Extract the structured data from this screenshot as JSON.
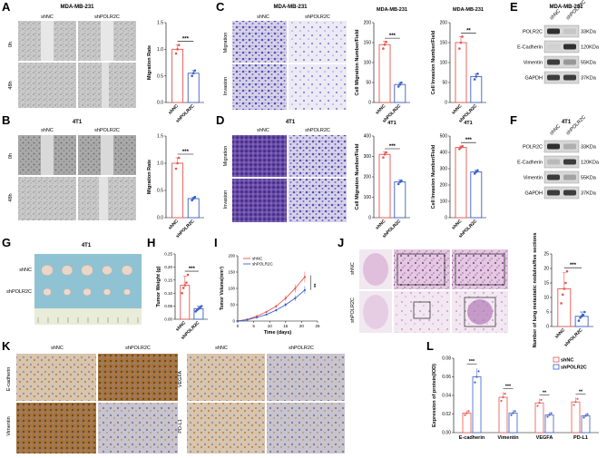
{
  "panels": {
    "A": {
      "letter": "A",
      "cell_line": "MDA-MB-231",
      "groups": [
        "shNC",
        "shPOLR2C"
      ],
      "rows": [
        "0h",
        "48h"
      ]
    },
    "B": {
      "letter": "B",
      "cell_line": "4T1",
      "groups": [
        "shNC",
        "shPOLR2C"
      ],
      "rows": [
        "0h",
        "48h"
      ]
    },
    "C": {
      "letter": "C",
      "cell_line": "MDA-MB-231",
      "groups": [
        "shNC",
        "shPOLR2C"
      ],
      "rows": [
        "Migration",
        "Invasion"
      ]
    },
    "D": {
      "letter": "D",
      "cell_line": "4T1",
      "groups": [
        "shNC",
        "shPOLR2C"
      ],
      "rows": [
        "Migration",
        "Invasion"
      ]
    },
    "E": {
      "letter": "E",
      "cell_line": "MDA-MB-231",
      "lanes": [
        "shNC",
        "shPOLR2C"
      ],
      "bands": [
        {
          "name": "POLR2C",
          "size": "33KDa"
        },
        {
          "name": "E-Cadherin",
          "size": "120KDa"
        },
        {
          "name": "Vimentin",
          "size": "55KDa"
        },
        {
          "name": "GAPDH",
          "size": "37KDa"
        }
      ]
    },
    "F": {
      "letter": "F",
      "cell_line": "4T1",
      "lanes": [
        "shNC",
        "shPOLR2C"
      ],
      "bands": [
        {
          "name": "POLR2C",
          "size": "33KDa"
        },
        {
          "name": "E-Cadherin",
          "size": "120KDa"
        },
        {
          "name": "Vimentin",
          "size": "55KDa"
        },
        {
          "name": "GAPDH",
          "size": "37KDa"
        }
      ]
    },
    "G": {
      "letter": "G",
      "cell_line": "4T1",
      "rows": [
        "shNC",
        "shPOLR2C"
      ]
    },
    "H": {
      "letter": "H"
    },
    "I": {
      "letter": "I"
    },
    "J": {
      "letter": "J",
      "rows": [
        "shNC",
        "shPOLR2C"
      ]
    },
    "K": {
      "letter": "K",
      "groups": [
        "shNC",
        "shPOLR2C"
      ],
      "markers_left": [
        "E-cadherin",
        "Vimentin"
      ],
      "markers_right": [
        "VEGFA",
        "PD-L1"
      ]
    },
    "L": {
      "letter": "L"
    }
  },
  "colors": {
    "shNC": "#e8554e",
    "shPOLR2C": "#3b5fc9",
    "crystal": "#7b6fc9",
    "sig": "#000000"
  },
  "chart_data": [
    {
      "id": "A-chart",
      "type": "bar",
      "ylabel": "Migration Rate",
      "categories": [
        "shNC",
        "shPOLR2C"
      ],
      "values": [
        1.0,
        0.55
      ],
      "points": [
        [
          0.92,
          1.0,
          1.08
        ],
        [
          0.5,
          0.55,
          0.6
        ]
      ],
      "ylim": [
        0,
        1.5
      ],
      "ticks": [
        "0.0",
        "0.5",
        "1.0",
        "1.5"
      ],
      "sig": "***"
    },
    {
      "id": "B-chart",
      "type": "bar",
      "ylabel": "Migration Rate",
      "categories": [
        "shNC",
        "shPOLR2C"
      ],
      "values": [
        1.0,
        0.35
      ],
      "points": [
        [
          0.9,
          1.0,
          1.1
        ],
        [
          0.32,
          0.35,
          0.38
        ]
      ],
      "ylim": [
        0,
        1.5
      ],
      "ticks": [
        "0.0",
        "0.5",
        "1.0",
        "1.5"
      ],
      "sig": "***"
    },
    {
      "id": "C-mig",
      "type": "bar",
      "title": "MDA-MB-231",
      "ylabel": "Cell Migration Number/Field",
      "categories": [
        "shNC",
        "shPOLR2C"
      ],
      "values": [
        145,
        45
      ],
      "points": [
        [
          135,
          145,
          152
        ],
        [
          40,
          45,
          50
        ]
      ],
      "ylim": [
        0,
        200
      ],
      "ticks": [
        "0",
        "50",
        "100",
        "150",
        "200"
      ],
      "sig": "***"
    },
    {
      "id": "C-inv",
      "type": "bar",
      "title": "MDA-MB-231",
      "ylabel": "Cell Invasion Number/Field",
      "categories": [
        "shNC",
        "shPOLR2C"
      ],
      "values": [
        150,
        65
      ],
      "points": [
        [
          135,
          150,
          165
        ],
        [
          58,
          65,
          72
        ]
      ],
      "ylim": [
        0,
        200
      ],
      "ticks": [
        "0",
        "50",
        "100",
        "150",
        "200"
      ],
      "sig": "**"
    },
    {
      "id": "D-mig",
      "type": "bar",
      "title": "4T1",
      "ylabel": "Cell Migration Number/Field",
      "categories": [
        "shNC",
        "shPOLR2C"
      ],
      "values": [
        310,
        175
      ],
      "points": [
        [
          295,
          310,
          320
        ],
        [
          165,
          175,
          182
        ]
      ],
      "ylim": [
        0,
        400
      ],
      "ticks": [
        "0",
        "100",
        "200",
        "300",
        "400"
      ],
      "sig": "***"
    },
    {
      "id": "D-inv",
      "type": "bar",
      "title": "4T1",
      "ylabel": "Cell Invasion Number/Field",
      "categories": [
        "shNC",
        "shPOLR2C"
      ],
      "values": [
        430,
        280
      ],
      "points": [
        [
          420,
          430,
          438
        ],
        [
          270,
          280,
          290
        ]
      ],
      "ylim": [
        0,
        500
      ],
      "ticks": [
        "0",
        "100",
        "200",
        "300",
        "400",
        "500"
      ],
      "sig": "***"
    },
    {
      "id": "H-chart",
      "type": "bar",
      "ylabel": "Tumor Weight (g)",
      "categories": [
        "shNC",
        "shPOLR2C"
      ],
      "values": [
        0.13,
        0.04
      ],
      "points": [
        [
          0.1,
          0.12,
          0.13,
          0.14,
          0.17
        ],
        [
          0.03,
          0.035,
          0.04,
          0.045,
          0.05
        ]
      ],
      "ylim": [
        0,
        0.25
      ],
      "ticks": [
        "0.00",
        "0.05",
        "0.10",
        "0.15",
        "0.20",
        "0.25"
      ],
      "sig": "***"
    },
    {
      "id": "I-chart",
      "type": "line",
      "xlabel": "Time (days)",
      "ylabel": "Tumor Volume(mm³)",
      "x": [
        0,
        3,
        6,
        9,
        12,
        15,
        18,
        21
      ],
      "xticks": [
        "0",
        "5",
        "10",
        "15",
        "20",
        "25"
      ],
      "yticks": [
        "0",
        "50",
        "100",
        "150",
        "200"
      ],
      "ylim": [
        0,
        200
      ],
      "xlim": [
        0,
        25
      ],
      "series": [
        {
          "name": "shNC",
          "values": [
            0,
            5,
            15,
            28,
            45,
            70,
            100,
            135
          ]
        },
        {
          "name": "shPOLR2C",
          "values": [
            0,
            4,
            11,
            20,
            33,
            50,
            70,
            95
          ]
        }
      ],
      "sig": "**"
    },
    {
      "id": "J-chart",
      "type": "bar",
      "ylabel": "Number of lung metastatic nodules/five sections",
      "categories": [
        "shNC",
        "shPOLR2C"
      ],
      "values": [
        13,
        3.5
      ],
      "points": [
        [
          8,
          11,
          13,
          15,
          19
        ],
        [
          2,
          3,
          3.5,
          4,
          5
        ]
      ],
      "ylim": [
        0,
        25
      ],
      "ticks": [
        "0",
        "5",
        "10",
        "15",
        "20",
        "25"
      ],
      "sig": "***"
    },
    {
      "id": "L-chart",
      "type": "bar",
      "ylabel": "Expression of protein(IOD)",
      "categories": [
        "E-cadherin",
        "Vimentin",
        "VEGFA",
        "PD-L1"
      ],
      "ylim": [
        0,
        0.08
      ],
      "ticks": [
        "0.00",
        "0.02",
        "0.04",
        "0.06",
        "0.08"
      ],
      "series": [
        {
          "name": "shNC",
          "values": [
            0.021,
            0.038,
            0.032,
            0.033
          ]
        },
        {
          "name": "shPOLR2C",
          "values": [
            0.06,
            0.021,
            0.019,
            0.018
          ]
        }
      ],
      "sig": [
        "***",
        "***",
        "**",
        "**"
      ]
    }
  ]
}
